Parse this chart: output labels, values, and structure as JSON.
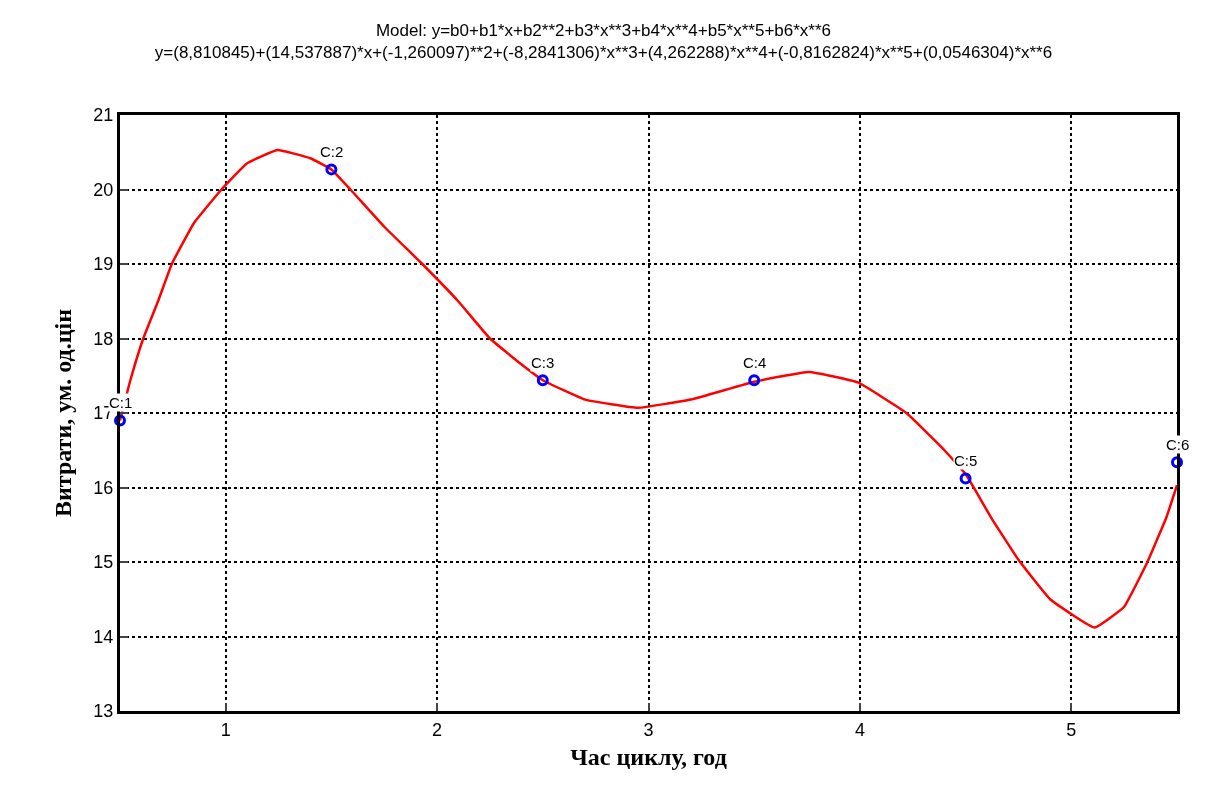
{
  "chart_data": {
    "type": "scatter",
    "title": "Model: y=b0+b1*x+b2**2+b3*x**3+b4*x**4+b5*x**5+b6*x**6",
    "subtitle": "y=(8,810845)+(14,537887)*x+(-1,260097)**2+(-8,2841306)*x**3+(4,262288)*x**4+(-0,8162824)*x**5+(0,0546304)*x**6",
    "xlabel": "Час циклу, год",
    "ylabel": "Витрати, ум. од.цін",
    "series": [
      {
        "type": "scatter",
        "color": "#0000ff",
        "marker": "circle",
        "x": [
          0.5,
          1.5,
          2.5,
          3.5,
          4.5,
          5.5
        ],
        "values": [
          16.9,
          20.27,
          17.44,
          17.44,
          16.12,
          16.34
        ]
      },
      {
        "type": "line",
        "color": "#ff0000",
        "line_style": "solid",
        "marker": "none",
        "x": [
          0.5,
          0.55,
          0.61,
          0.68,
          0.745,
          0.85,
          0.98,
          1.1,
          1.245,
          1.4,
          1.5,
          1.59,
          1.75,
          1.93,
          2.1,
          2.25,
          2.4,
          2.5,
          2.7,
          2.95,
          3.2,
          3.5,
          3.76,
          3.99,
          4.22,
          4.4,
          4.5,
          4.62,
          4.75,
          4.9,
          5.11,
          5.25,
          5.36,
          5.45,
          5.5
        ],
        "values": [
          16.9,
          17.45,
          18.0,
          18.5,
          19.0,
          19.55,
          20.0,
          20.35,
          20.53,
          20.42,
          20.27,
          20.0,
          19.5,
          19.0,
          18.5,
          18.0,
          17.65,
          17.44,
          17.18,
          17.07,
          17.18,
          17.42,
          17.55,
          17.41,
          17.0,
          16.5,
          16.18,
          15.6,
          15.03,
          14.5,
          14.12,
          14.4,
          15.0,
          15.6,
          16.03
        ]
      }
    ],
    "annotations": [
      {
        "text": "C:1",
        "x": 0.5,
        "y": 16.9
      },
      {
        "text": "C:2",
        "x": 1.5,
        "y": 20.27
      },
      {
        "text": "C:3",
        "x": 2.5,
        "y": 17.44
      },
      {
        "text": "C:4",
        "x": 3.5,
        "y": 17.44
      },
      {
        "text": "C:5",
        "x": 4.5,
        "y": 16.12
      },
      {
        "text": "C:6",
        "x": 5.5,
        "y": 16.34
      }
    ],
    "xlim": [
      0.5,
      5.5
    ],
    "xticks": [
      1,
      2,
      3,
      4,
      5
    ],
    "ylim": [
      13,
      21
    ],
    "yticks": [
      13,
      14,
      15,
      16,
      17,
      18,
      19,
      20,
      21
    ],
    "grid": true
  }
}
